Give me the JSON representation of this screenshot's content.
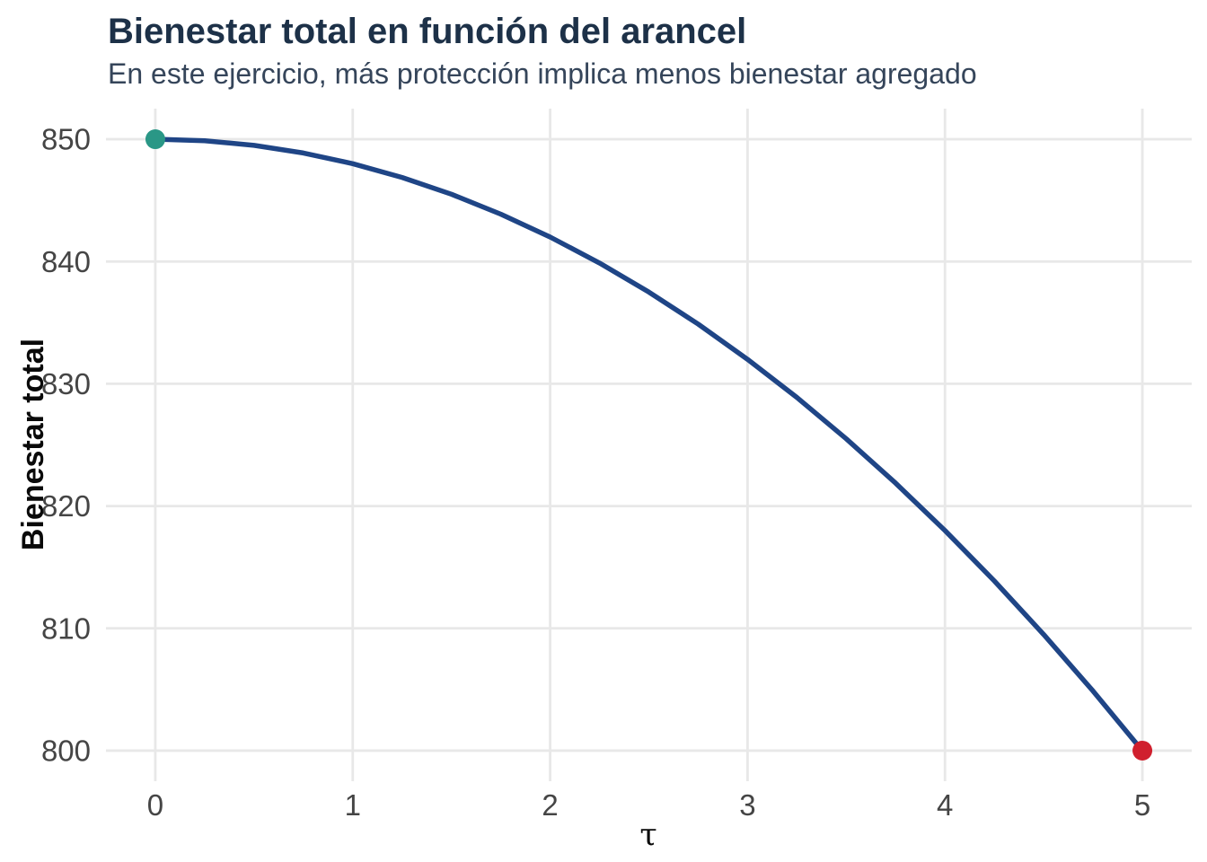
{
  "figure": {
    "background": "#ffffff"
  },
  "chart_data": {
    "type": "line",
    "title": "Bienestar total en función del arancel",
    "subtitle": "En este ejercicio, más protección implica menos bienestar agregado",
    "xlabel": "τ",
    "ylabel": "Bienestar total",
    "xlim": [
      0,
      5
    ],
    "ylim": [
      800,
      850
    ],
    "x_ticks": [
      0,
      1,
      2,
      3,
      4,
      5
    ],
    "y_ticks": [
      800,
      810,
      820,
      830,
      840,
      850
    ],
    "grid": "major-only",
    "legend": "none",
    "series": [
      {
        "name": "Bienestar total",
        "color": "#1f4586",
        "line_width": 5.5,
        "x": [
          0,
          0.25,
          0.5,
          0.75,
          1,
          1.25,
          1.5,
          1.75,
          2,
          2.25,
          2.5,
          2.75,
          3,
          3.25,
          3.5,
          3.75,
          4,
          4.25,
          4.5,
          4.75,
          5
        ],
        "y": [
          850,
          849.875,
          849.5,
          848.875,
          848,
          846.875,
          845.5,
          843.875,
          842,
          839.875,
          837.5,
          834.875,
          832,
          828.875,
          825.5,
          821.875,
          818,
          813.875,
          809.5,
          804.875,
          800
        ]
      }
    ],
    "markers": [
      {
        "role": "start",
        "x": 0,
        "y": 850,
        "color": "#2a9786",
        "radius": 11
      },
      {
        "role": "end",
        "x": 5,
        "y": 800,
        "color": "#d0202e",
        "radius": 11
      }
    ],
    "colors": {
      "title": "#1d3148",
      "subtitle": "#35455a",
      "tick_label": "#454545",
      "axis_title": "#0a0a0a",
      "grid": "#e8e8e8",
      "background": "#ffffff"
    }
  }
}
